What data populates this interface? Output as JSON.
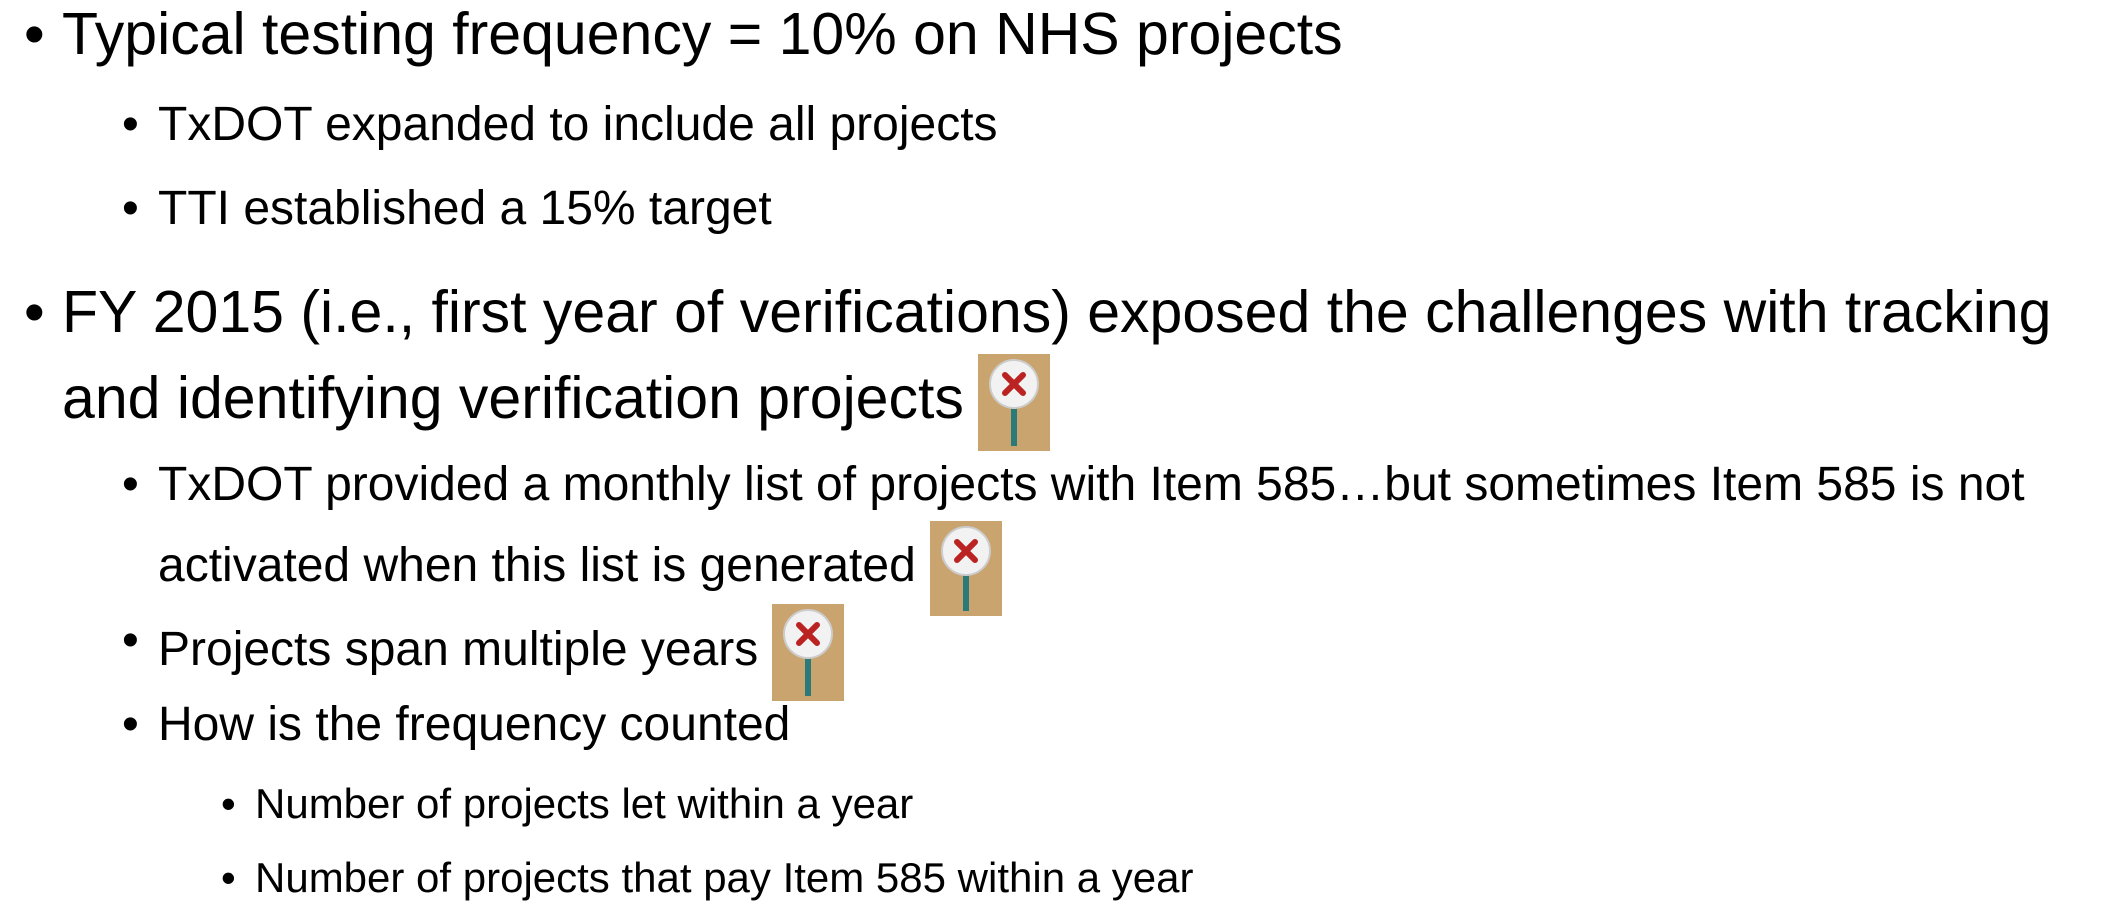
{
  "bullets": [
    {
      "text": "Typical testing frequency = 10% on NHS projects",
      "children": [
        {
          "text": "TxDOT expanded to include all projects"
        },
        {
          "text": "TTI established a 15% target"
        }
      ]
    },
    {
      "text": "FY 2015 (i.e., first year of verifications) exposed the challenges with tracking and identifying verification projects",
      "children": [
        {
          "text": "TxDOT provided a monthly list of projects with Item 585…but sometimes Item 585 is not activated when this list is generated"
        },
        {
          "text": "Projects span multiple years"
        },
        {
          "text": "How is the frequency counted",
          "children": [
            {
              "text": "Number of projects let within a year"
            },
            {
              "text": "Number of projects that pay Item 585 within a year"
            }
          ]
        }
      ]
    }
  ]
}
